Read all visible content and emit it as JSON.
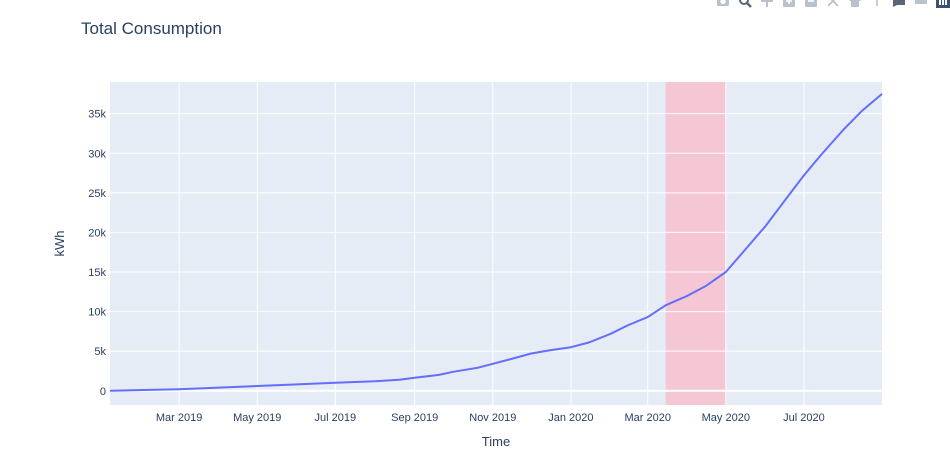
{
  "chart_data": {
    "type": "line",
    "title": "Total Consumption",
    "xlabel": "Time",
    "ylabel": "kWh",
    "x_range": [
      "2019-01-06",
      "2020-08-31"
    ],
    "y_range": [
      -1800,
      39000
    ],
    "x_ticks": [
      {
        "date": "2019-03-01",
        "label": "Mar 2019"
      },
      {
        "date": "2019-05-01",
        "label": "May 2019"
      },
      {
        "date": "2019-07-01",
        "label": "Jul 2019"
      },
      {
        "date": "2019-09-01",
        "label": "Sep 2019"
      },
      {
        "date": "2019-11-01",
        "label": "Nov 2019"
      },
      {
        "date": "2020-01-01",
        "label": "Jan 2020"
      },
      {
        "date": "2020-03-01",
        "label": "Mar 2020"
      },
      {
        "date": "2020-05-01",
        "label": "May 2020"
      },
      {
        "date": "2020-07-01",
        "label": "Jul 2020"
      }
    ],
    "y_ticks": [
      {
        "value": 0,
        "label": "0"
      },
      {
        "value": 5000,
        "label": "5k"
      },
      {
        "value": 10000,
        "label": "10k"
      },
      {
        "value": 15000,
        "label": "15k"
      },
      {
        "value": 20000,
        "label": "20k"
      },
      {
        "value": 25000,
        "label": "25k"
      },
      {
        "value": 30000,
        "label": "30k"
      },
      {
        "value": 35000,
        "label": "35k"
      }
    ],
    "highlight": {
      "x0": "2020-03-15",
      "x1": "2020-05-01",
      "color": "#f5c6d3"
    },
    "grid": true,
    "series": [
      {
        "color": "#636efa",
        "points": [
          [
            "2019-01-06",
            0
          ],
          [
            "2019-02-01",
            100
          ],
          [
            "2019-03-01",
            200
          ],
          [
            "2019-04-01",
            400
          ],
          [
            "2019-05-01",
            600
          ],
          [
            "2019-06-01",
            800
          ],
          [
            "2019-07-01",
            1000
          ],
          [
            "2019-08-01",
            1200
          ],
          [
            "2019-08-20",
            1400
          ],
          [
            "2019-09-01",
            1650
          ],
          [
            "2019-09-20",
            2000
          ],
          [
            "2019-10-01",
            2400
          ],
          [
            "2019-10-20",
            2900
          ],
          [
            "2019-11-01",
            3400
          ],
          [
            "2019-11-15",
            4000
          ],
          [
            "2019-12-01",
            4700
          ],
          [
            "2019-12-15",
            5100
          ],
          [
            "2020-01-01",
            5500
          ],
          [
            "2020-01-15",
            6100
          ],
          [
            "2020-02-01",
            7200
          ],
          [
            "2020-02-15",
            8300
          ],
          [
            "2020-03-01",
            9300
          ],
          [
            "2020-03-15",
            10800
          ],
          [
            "2020-04-01",
            12000
          ],
          [
            "2020-04-15",
            13200
          ],
          [
            "2020-05-01",
            15000
          ],
          [
            "2020-05-15",
            17600
          ],
          [
            "2020-06-01",
            20800
          ],
          [
            "2020-06-15",
            23800
          ],
          [
            "2020-07-01",
            27200
          ],
          [
            "2020-07-15",
            29900
          ],
          [
            "2020-08-01",
            33000
          ],
          [
            "2020-08-15",
            35300
          ],
          [
            "2020-08-31",
            37500
          ]
        ]
      }
    ]
  },
  "colors": {
    "plot_bg": "#e5ecf6",
    "grid": "#ffffff",
    "text": "#2a3f5f",
    "modebar": "#b8c2cc"
  },
  "modebar_icons": [
    "camera-icon",
    "zoom-icon",
    "pan-icon",
    "zoom-in-icon",
    "zoom-out-icon",
    "autoscale-icon",
    "reset-axes-icon",
    "spike-lines-icon",
    "hover-closest-icon",
    "hover-compare-icon",
    "plotly-logo-icon"
  ]
}
